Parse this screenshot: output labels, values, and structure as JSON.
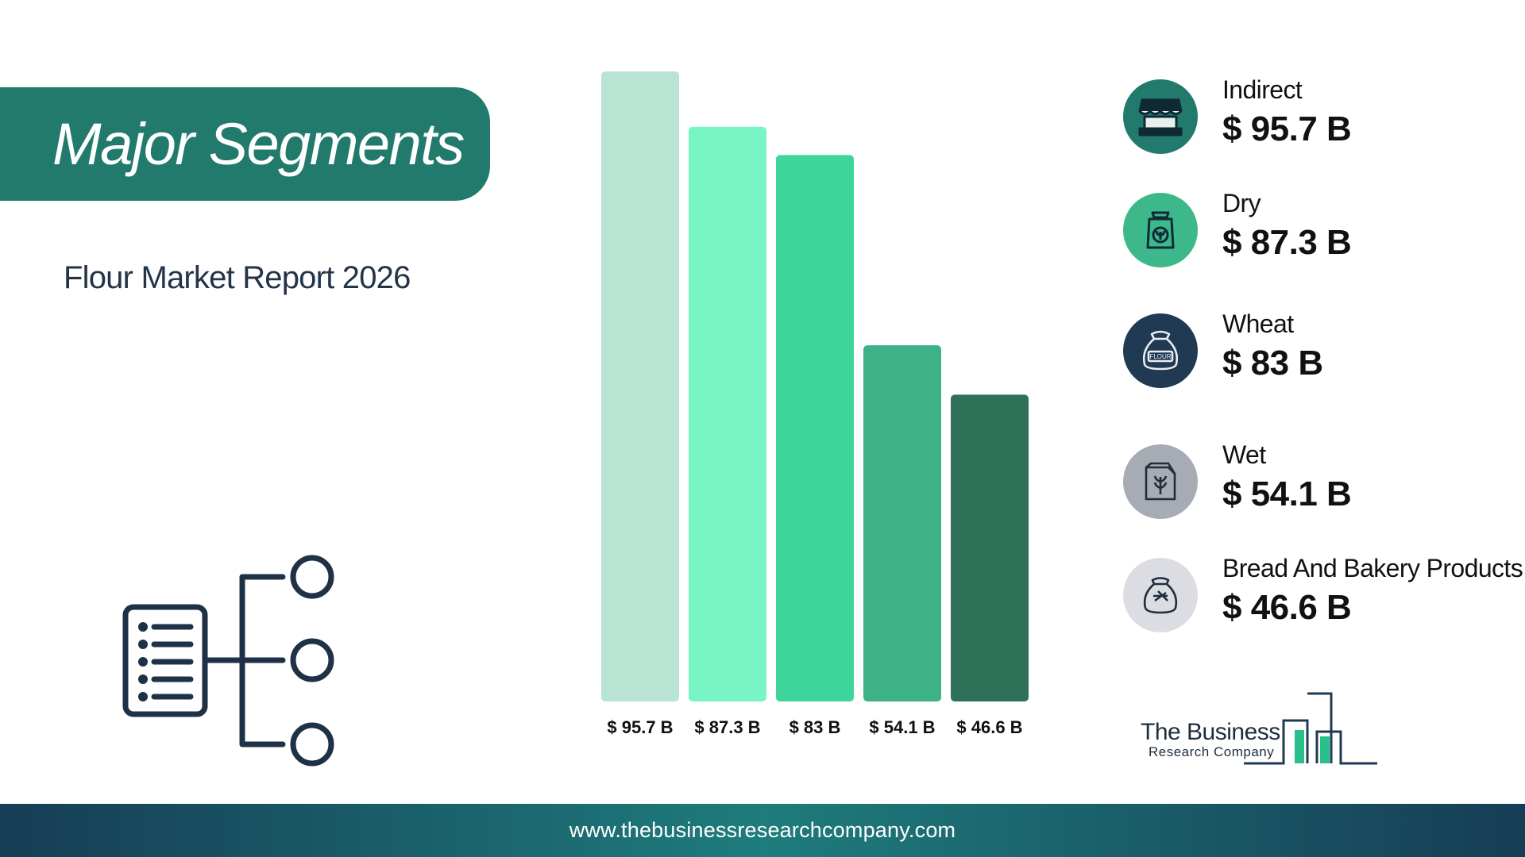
{
  "header": {
    "title": "Major Segments",
    "subtitle": "Flour Market Report 2026"
  },
  "chart_data": {
    "type": "bar",
    "categories": [
      "Indirect",
      "Dry",
      "Wheat",
      "Wet",
      "Bread And Bakery Products"
    ],
    "values": [
      95.7,
      87.3,
      83,
      54.1,
      46.6
    ],
    "value_labels": [
      "$ 95.7 B",
      "$ 87.3 B",
      "$ 83 B",
      "$ 54.1 B",
      "$ 46.6 B"
    ],
    "colors": [
      "#b9e4d4",
      "#79f4c5",
      "#3dd59b",
      "#3db286",
      "#2e7058"
    ],
    "ylim": [
      0,
      95.7
    ],
    "unit": "$ B",
    "grid": false,
    "legend_placement": "right"
  },
  "legend": {
    "items": [
      {
        "name": "Indirect",
        "value": "$ 95.7 B",
        "icon": "market-stall-icon",
        "color": "#217a6b"
      },
      {
        "name": "Dry",
        "value": "$ 87.3 B",
        "icon": "flour-bag-icon",
        "color": "#3db88a"
      },
      {
        "name": "Wheat",
        "value": "$ 83 B",
        "icon": "flour-sack-icon",
        "color": "#1f3a52"
      },
      {
        "name": "Wet",
        "value": "$ 54.1 B",
        "icon": "grain-package-icon",
        "color": "#a7abb3"
      },
      {
        "name": "Bread And Bakery Products",
        "value": "$ 46.6 B",
        "icon": "bakery-sack-icon",
        "color": "#dcdde2"
      }
    ]
  },
  "logo": {
    "line1": "The Business",
    "line2": "Research Company"
  },
  "footer": {
    "url": "www.thebusinessresearchcompany.com"
  }
}
